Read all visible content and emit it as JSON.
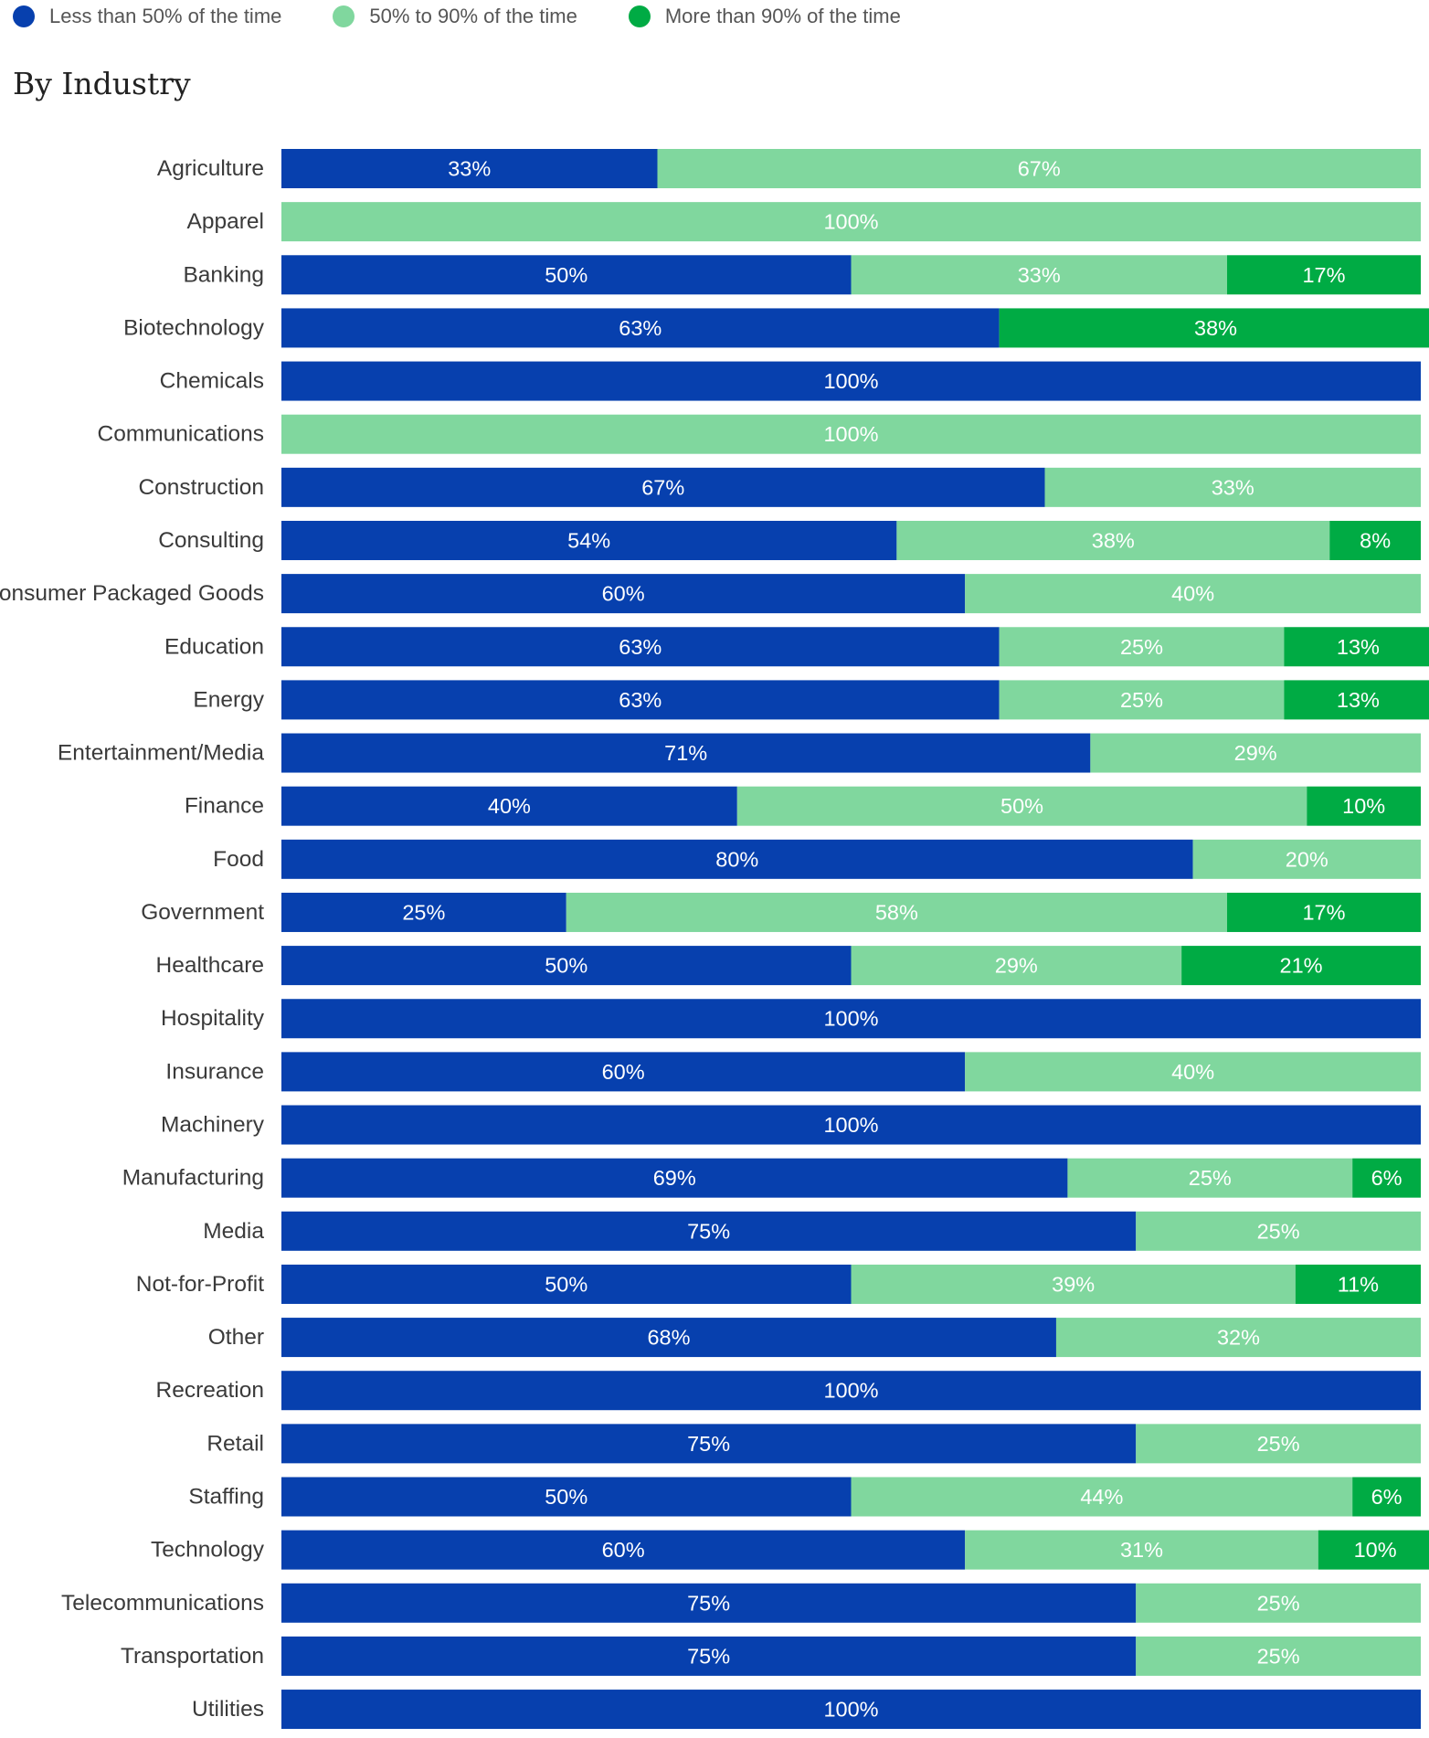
{
  "legend": [
    {
      "label": "Less than 50% of the time",
      "color": "#0740AE"
    },
    {
      "label": "50% to 90% of the time",
      "color": "#80D79E"
    },
    {
      "label": "More than 90% of the time",
      "color": "#00AB44"
    }
  ],
  "heading": "By Industry",
  "chart_data": {
    "type": "bar",
    "orientation": "horizontal",
    "stacked": true,
    "title": "By Industry",
    "xlim": [
      0,
      100
    ],
    "grid": false,
    "legend_position": "top-left",
    "categories": [
      "Agriculture",
      "Apparel",
      "Banking",
      "Biotechnology",
      "Chemicals",
      "Communications",
      "Construction",
      "Consulting",
      "Consumer Packaged Goods",
      "Education",
      "Energy",
      "Entertainment/Media",
      "Finance",
      "Food",
      "Government",
      "Healthcare",
      "Hospitality",
      "Insurance",
      "Machinery",
      "Manufacturing",
      "Media",
      "Not-for-Profit",
      "Other",
      "Recreation",
      "Retail",
      "Staffing",
      "Technology",
      "Telecommunications",
      "Transportation",
      "Utilities"
    ],
    "series": [
      {
        "name": "Less than 50% of the time",
        "color": "#0740AE",
        "values": [
          33,
          0,
          50,
          63,
          100,
          0,
          67,
          54,
          60,
          63,
          63,
          71,
          40,
          80,
          25,
          50,
          100,
          60,
          100,
          69,
          75,
          50,
          68,
          100,
          75,
          50,
          60,
          75,
          75,
          100
        ]
      },
      {
        "name": "50% to 90% of the time",
        "color": "#80D79E",
        "values": [
          67,
          100,
          33,
          0,
          0,
          100,
          33,
          38,
          40,
          25,
          25,
          29,
          50,
          20,
          58,
          29,
          0,
          40,
          0,
          25,
          25,
          39,
          32,
          0,
          25,
          44,
          31,
          25,
          25,
          0
        ]
      },
      {
        "name": "More than 90% of the time",
        "color": "#00AB44",
        "values": [
          0,
          0,
          17,
          38,
          0,
          0,
          0,
          8,
          0,
          13,
          13,
          0,
          10,
          0,
          17,
          21,
          0,
          0,
          0,
          6,
          0,
          11,
          0,
          0,
          0,
          6,
          10,
          0,
          0,
          0
        ]
      }
    ]
  }
}
